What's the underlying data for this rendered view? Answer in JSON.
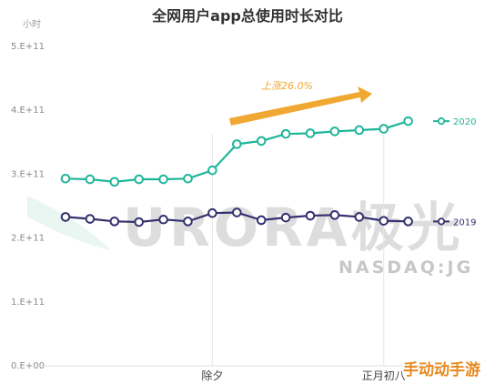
{
  "chart_data": {
    "type": "line",
    "title": "全网用户app总使用时长对比",
    "unit_label": "小时",
    "y_ticks": [
      "0.E+00",
      "1.E+11",
      "2.E+11",
      "3.E+11",
      "4.E+11",
      "5.E+11"
    ],
    "ylim": [
      0,
      500000000000
    ],
    "x_count": 15,
    "x_labels": [
      {
        "index": 6,
        "label": "除夕"
      },
      {
        "index": 13,
        "label": "正月初八"
      }
    ],
    "series": [
      {
        "name": "2020",
        "color": "#1fb59a",
        "values": [
          293000000000,
          292000000000,
          288000000000,
          292000000000,
          292000000000,
          293000000000,
          306000000000,
          347000000000,
          352000000000,
          363000000000,
          364000000000,
          367000000000,
          369000000000,
          371000000000,
          383000000000
        ]
      },
      {
        "name": "2019",
        "color": "#35306e",
        "values": [
          233000000000,
          230000000000,
          226000000000,
          225000000000,
          229000000000,
          226000000000,
          239000000000,
          240000000000,
          228000000000,
          232000000000,
          235000000000,
          236000000000,
          233000000000,
          227000000000,
          226000000000
        ]
      }
    ],
    "annotation": {
      "text": "上涨26.0%",
      "color": "#f0a832"
    },
    "grid": false,
    "legend_position": "right"
  },
  "watermark": {
    "brand": "URORA极光",
    "sub": "NASDAQ:JG"
  },
  "site_watermark": "手动动手游"
}
